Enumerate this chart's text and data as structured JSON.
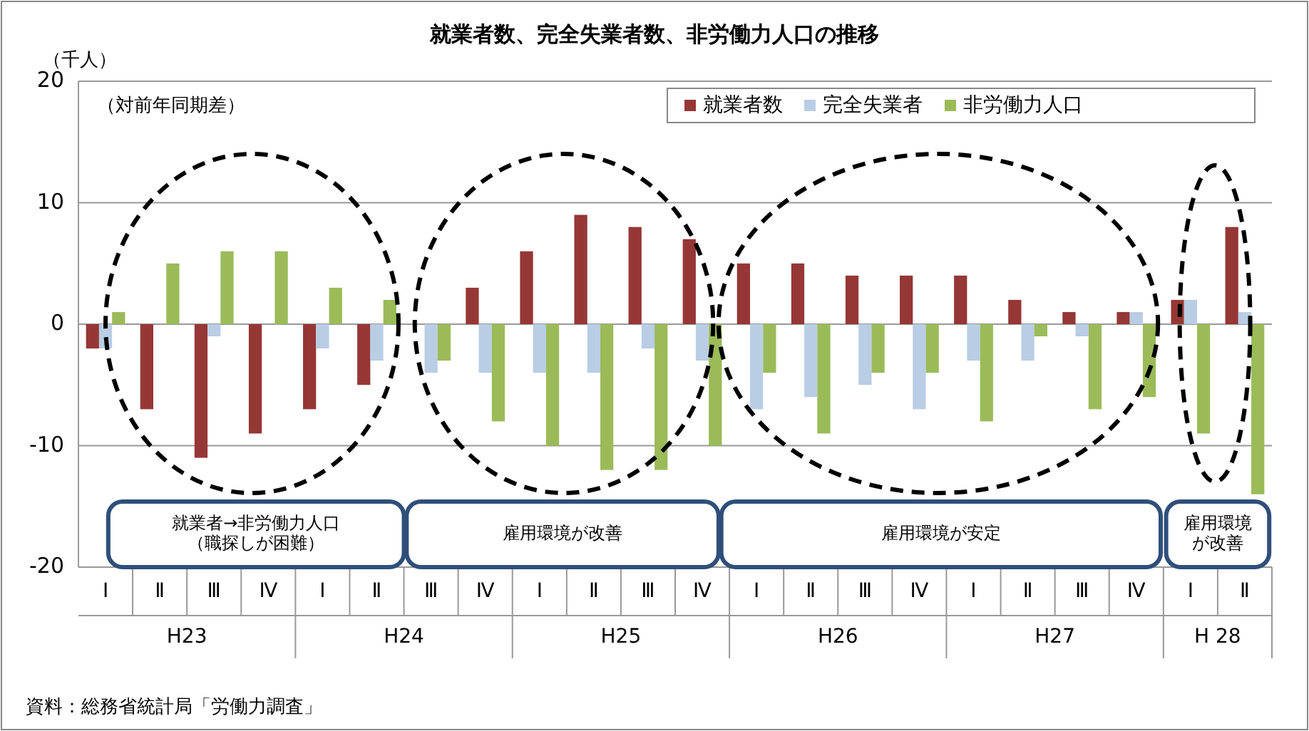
{
  "chart_data": {
    "type": "bar",
    "title": "就業者数、完全失業者数、非労働力人口の推移",
    "ylabel": "（千人）",
    "categories": [
      "Ⅰ",
      "Ⅱ",
      "Ⅲ",
      "Ⅳ",
      "Ⅰ",
      "Ⅱ",
      "Ⅲ",
      "Ⅳ",
      "Ⅰ",
      "Ⅱ",
      "Ⅲ",
      "Ⅳ",
      "Ⅰ",
      "Ⅱ",
      "Ⅲ",
      "Ⅳ",
      "Ⅰ",
      "Ⅱ",
      "Ⅲ",
      "Ⅳ",
      "Ⅰ",
      "Ⅱ"
    ],
    "series": [
      {
        "name": "就業者数",
        "color": "#953735",
        "values": [
          -2,
          -7,
          -11,
          -9,
          -7,
          -5,
          0,
          3,
          6,
          9,
          8,
          7,
          5,
          5,
          4,
          4,
          4,
          2,
          1,
          1,
          2,
          8
        ]
      },
      {
        "name": "完全失業者",
        "color": "#b9cde5",
        "values": [
          -2,
          0,
          -1,
          0,
          -2,
          -3,
          -4,
          -4,
          -4,
          -4,
          -2,
          -3,
          -7,
          -6,
          -5,
          -7,
          -3,
          -3,
          -1,
          1,
          2,
          1
        ]
      },
      {
        "name": "非労働力人口",
        "color": "#9bbb59",
        "values": [
          1,
          5,
          6,
          6,
          3,
          2,
          -3,
          -8,
          -10,
          -12,
          -12,
          -10,
          -4,
          -9,
          -4,
          -4,
          -8,
          -1,
          -7,
          -6,
          -9,
          -14
        ]
      }
    ],
    "ylim": [
      -20,
      20
    ],
    "yticks": [
      -20,
      -10,
      0,
      10,
      20
    ],
    "grid": "y",
    "legend": "top right",
    "annotations": [
      "（対前年同期差）",
      "就業者→非労働力人口",
      "（職探しが困難）",
      "雇用環境が改善",
      "雇用環境が安定",
      "雇用環境",
      "が改善",
      "H23",
      "H24",
      "H25",
      "H26",
      "H27",
      "H 28",
      "資料：総務省統計局「労働力調査」"
    ]
  }
}
